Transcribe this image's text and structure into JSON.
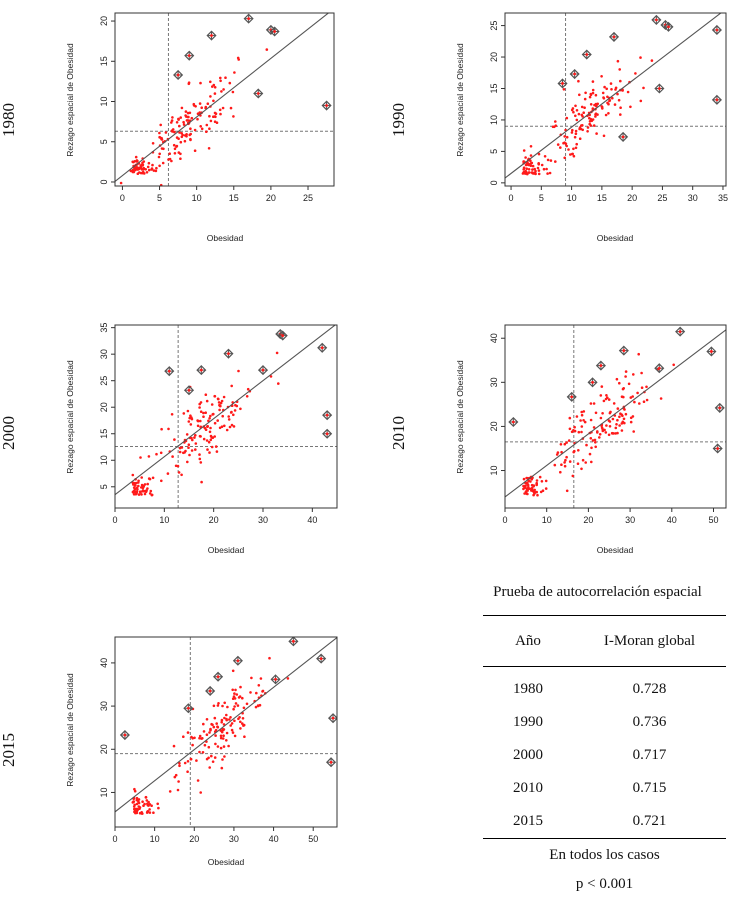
{
  "chart_data": [
    {
      "type": "scatter",
      "year_label": "1980",
      "xlabel": "Obesidad",
      "ylabel": "Rezago espacial de Obesidad",
      "xlim": [
        -1,
        28.5
      ],
      "ylim": [
        -0.5,
        21
      ],
      "xticks": [
        0,
        5,
        10,
        15,
        20,
        25
      ],
      "yticks": [
        0,
        5,
        10,
        15,
        20
      ],
      "mean_x": 6.2,
      "mean_y": 6.3,
      "regression": {
        "intercept": 0.8,
        "slope": 0.728
      },
      "marked_points": [
        [
          7.5,
          13.3
        ],
        [
          9,
          15.7
        ],
        [
          12,
          18.2
        ],
        [
          17,
          20.3
        ],
        [
          20,
          18.9
        ],
        [
          20.5,
          18.7
        ],
        [
          18.3,
          11
        ],
        [
          27.5,
          9.5
        ]
      ]
    },
    {
      "type": "scatter",
      "year_label": "1990",
      "xlabel": "Obesidad",
      "ylabel": "Rezago espacial de Obesidad",
      "xlim": [
        -1,
        35.5
      ],
      "ylim": [
        -0.5,
        27
      ],
      "xticks": [
        0,
        5,
        10,
        15,
        20,
        25,
        30,
        35
      ],
      "yticks": [
        0,
        5,
        10,
        15,
        20,
        25
      ],
      "mean_x": 9,
      "mean_y": 9,
      "regression": {
        "intercept": 1.5,
        "slope": 0.736
      },
      "marked_points": [
        [
          8.5,
          15.8
        ],
        [
          10.5,
          17.3
        ],
        [
          12.5,
          20.4
        ],
        [
          17,
          23.2
        ],
        [
          24,
          25.9
        ],
        [
          25.5,
          25.1
        ],
        [
          26,
          24.8
        ],
        [
          24.5,
          15
        ],
        [
          18.5,
          7.3
        ],
        [
          34,
          24.3
        ],
        [
          34,
          13.2
        ]
      ]
    },
    {
      "type": "scatter",
      "year_label": "2000",
      "xlabel": "Obesidad",
      "ylabel": "Rezago espacial de Obesidad",
      "xlim": [
        0,
        45
      ],
      "ylim": [
        1,
        35.5
      ],
      "xticks": [
        0,
        10,
        20,
        30,
        40
      ],
      "yticks": [
        5,
        10,
        15,
        20,
        25,
        30,
        35
      ],
      "mean_x": 12.8,
      "mean_y": 12.6,
      "regression": {
        "intercept": 3.5,
        "slope": 0.717
      },
      "marked_points": [
        [
          11,
          26.8
        ],
        [
          15,
          23.2
        ],
        [
          17.5,
          27
        ],
        [
          23,
          30.1
        ],
        [
          30,
          27
        ],
        [
          33.5,
          33.8
        ],
        [
          34,
          33.5
        ],
        [
          42,
          31.2
        ],
        [
          43,
          18.5
        ],
        [
          43,
          15
        ]
      ]
    },
    {
      "type": "scatter",
      "year_label": "2010",
      "xlabel": "Obesidad",
      "ylabel": "Rezago espacial de Obesidad",
      "xlim": [
        0,
        53
      ],
      "ylim": [
        1.5,
        43
      ],
      "xticks": [
        0,
        10,
        20,
        30,
        40,
        50
      ],
      "yticks": [
        10,
        20,
        30,
        40
      ],
      "mean_x": 16.5,
      "mean_y": 16.5,
      "regression": {
        "intercept": 4,
        "slope": 0.715
      },
      "marked_points": [
        [
          2,
          21
        ],
        [
          16,
          26.7
        ],
        [
          21,
          30
        ],
        [
          23,
          33.8
        ],
        [
          28.5,
          37.2
        ],
        [
          37,
          33.2
        ],
        [
          42,
          41.5
        ],
        [
          49.5,
          37
        ],
        [
          51.5,
          24.2
        ],
        [
          51,
          15
        ]
      ]
    },
    {
      "type": "scatter",
      "year_label": "2015",
      "xlabel": "Obesidad",
      "ylabel": "Rezago espacial de Obesidad",
      "xlim": [
        0,
        56
      ],
      "ylim": [
        2,
        46
      ],
      "xticks": [
        0,
        10,
        20,
        30,
        40,
        50
      ],
      "yticks": [
        10,
        20,
        30,
        40
      ],
      "mean_x": 19,
      "mean_y": 19,
      "regression": {
        "intercept": 5.5,
        "slope": 0.721
      },
      "marked_points": [
        [
          2.5,
          23.3
        ],
        [
          18.5,
          29.5
        ],
        [
          24,
          33.5
        ],
        [
          26,
          36.8
        ],
        [
          31,
          40.5
        ],
        [
          40.5,
          36.2
        ],
        [
          45,
          45
        ],
        [
          52,
          41
        ],
        [
          55,
          27.2
        ],
        [
          54.5,
          17
        ]
      ]
    }
  ],
  "table": {
    "title": "Prueba de autocorrelación espacial",
    "col_year": "Año",
    "col_moran": "I-Moran global",
    "rows": [
      {
        "year": "1980",
        "value": "0.728"
      },
      {
        "year": "1990",
        "value": "0.736"
      },
      {
        "year": "2000",
        "value": "0.717"
      },
      {
        "year": "2010",
        "value": "0.715"
      },
      {
        "year": "2015",
        "value": "0.721"
      }
    ],
    "note": "En todos los casos",
    "p_value": "p < 0.001"
  },
  "colors": {
    "points": "#ff1a1a",
    "marked": "#555555",
    "line": "#555555",
    "dashed": "#777777",
    "axis": "#333333"
  }
}
